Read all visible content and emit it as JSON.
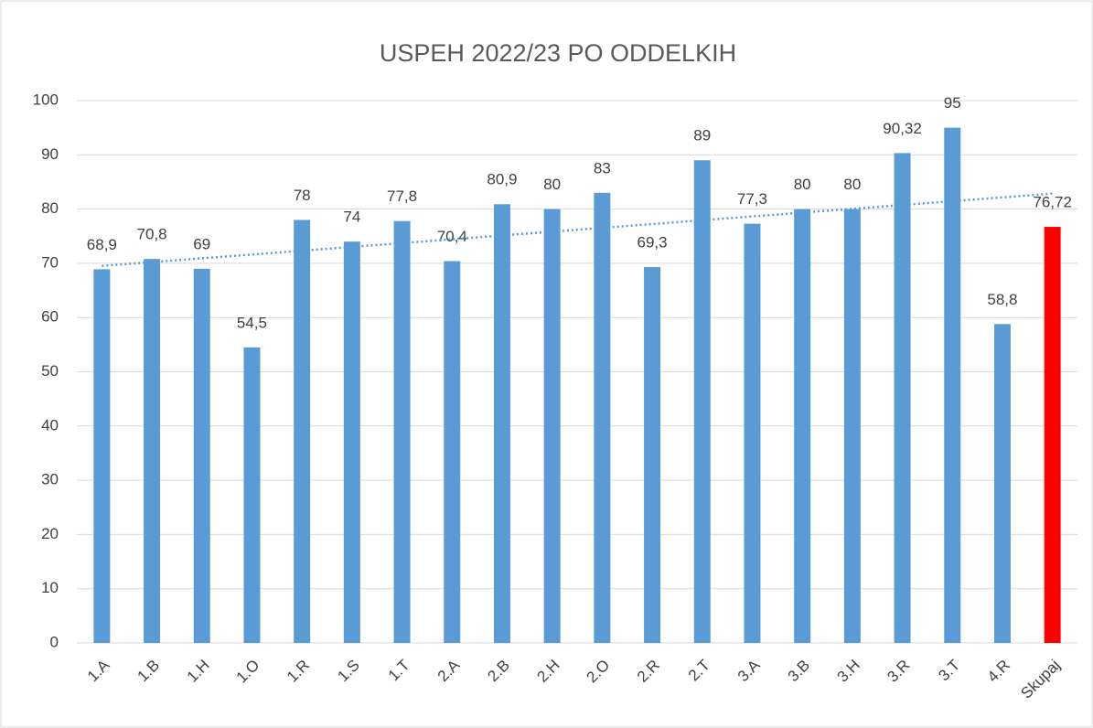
{
  "chart_data": {
    "type": "bar",
    "title": "USPEH 2022/23 PO ODDELKIH",
    "categories": [
      "1.A",
      "1.B",
      "1.H",
      "1.O",
      "1.R",
      "1.S",
      "1.T",
      "2.A",
      "2.B",
      "2.H",
      "2.O",
      "2.R",
      "2.T",
      "3.A",
      "3.B",
      "3.H",
      "3.R",
      "3.T",
      "4.R",
      "Skupaj"
    ],
    "values": [
      68.9,
      70.8,
      69,
      54.5,
      78,
      74,
      77.8,
      70.4,
      80.9,
      80,
      83,
      69.3,
      89,
      77.3,
      80,
      80,
      90.32,
      95,
      58.8,
      76.72
    ],
    "value_labels": [
      "68,9",
      "70,8",
      "69",
      "54,5",
      "78",
      "74",
      "77,8",
      "70,4",
      "80,9",
      "80",
      "83",
      "69,3",
      "89",
      "77,3",
      "80",
      "80",
      "90,32",
      "95",
      "58,8",
      "76,72"
    ],
    "colors": [
      "#5b9bd5",
      "#5b9bd5",
      "#5b9bd5",
      "#5b9bd5",
      "#5b9bd5",
      "#5b9bd5",
      "#5b9bd5",
      "#5b9bd5",
      "#5b9bd5",
      "#5b9bd5",
      "#5b9bd5",
      "#5b9bd5",
      "#5b9bd5",
      "#5b9bd5",
      "#5b9bd5",
      "#5b9bd5",
      "#5b9bd5",
      "#5b9bd5",
      "#5b9bd5",
      "#ff0000"
    ],
    "ylim": [
      0,
      100
    ],
    "yticks": [
      0,
      10,
      20,
      30,
      40,
      50,
      60,
      70,
      80,
      90,
      100
    ],
    "grid": true,
    "trendline": "linear"
  }
}
